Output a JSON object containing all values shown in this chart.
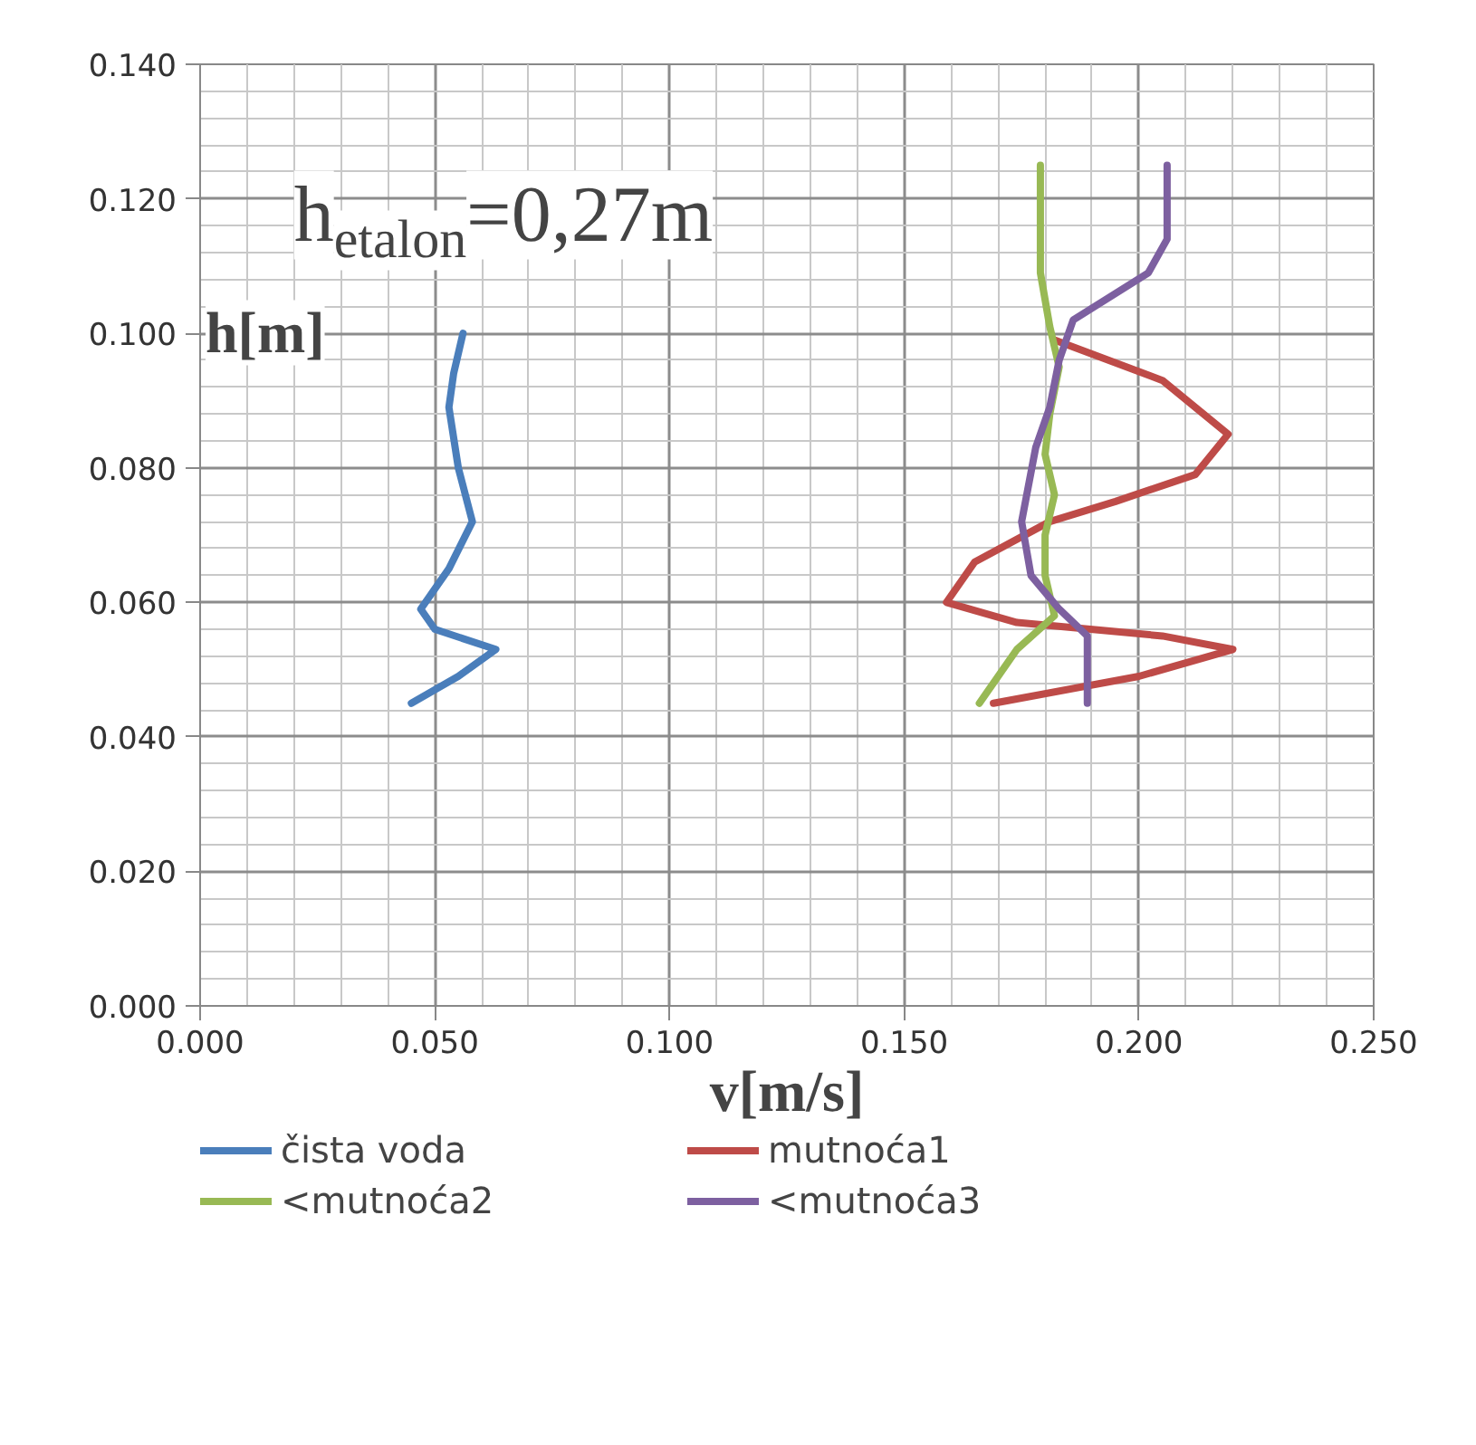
{
  "chart_data": {
    "type": "line",
    "xlabel": "v[m/s]",
    "ylabel": "h[m]",
    "annotations": [
      "h$_{etalon}$=0,27m"
    ],
    "xlim": [
      0,
      0.25
    ],
    "ylim": [
      0,
      0.14
    ],
    "xticks": [
      {
        "value": 0,
        "label": "0.000"
      },
      {
        "value": 0.05,
        "label": "0.050"
      },
      {
        "value": 0.1,
        "label": "0.100"
      },
      {
        "value": 0.15,
        "label": "0.150"
      },
      {
        "value": 0.2,
        "label": "0.200"
      },
      {
        "value": 0.25,
        "label": "0.250"
      }
    ],
    "yticks": [
      {
        "value": 0,
        "label": "0.000"
      },
      {
        "value": 0.02,
        "label": "0.020"
      },
      {
        "value": 0.04,
        "label": "0.040"
      },
      {
        "value": 0.06,
        "label": "0.060"
      },
      {
        "value": 0.08,
        "label": "0.080"
      },
      {
        "value": 0.1,
        "label": "0.100"
      },
      {
        "value": 0.12,
        "label": "0.120"
      },
      {
        "value": 0.14,
        "label": "0.140"
      }
    ],
    "grid": true,
    "legend": "bottom",
    "marker": "none",
    "line_style": "solid",
    "series": [
      {
        "name": "čista voda",
        "color": "#4a7ebb",
        "x": [
          0.056,
          0.054,
          0.053,
          0.055,
          0.058,
          0.053,
          0.047,
          0.05,
          0.063,
          0.055,
          0.045
        ],
        "values": [
          0.1,
          0.094,
          0.089,
          0.08,
          0.072,
          0.065,
          0.059,
          0.056,
          0.053,
          0.049,
          0.045
        ]
      },
      {
        "name": "mutnoća1",
        "color": "#be4b48",
        "x": [
          0.182,
          0.205,
          0.219,
          0.212,
          0.195,
          0.181,
          0.165,
          0.159,
          0.174,
          0.205,
          0.22,
          0.2,
          0.169
        ],
        "values": [
          0.099,
          0.093,
          0.085,
          0.079,
          0.075,
          0.072,
          0.066,
          0.06,
          0.057,
          0.055,
          0.053,
          0.049,
          0.045
        ]
      },
      {
        "name": "<mutnoća2",
        "color": "#98b954",
        "x": [
          0.179,
          0.179,
          0.181,
          0.183,
          0.181,
          0.18,
          0.182,
          0.18,
          0.18,
          0.182,
          0.174,
          0.166
        ],
        "values": [
          0.125,
          0.109,
          0.101,
          0.095,
          0.088,
          0.082,
          0.076,
          0.07,
          0.064,
          0.058,
          0.053,
          0.045
        ]
      },
      {
        "name": "<mutnoća3",
        "color": "#7d60a0",
        "x": [
          0.206,
          0.206,
          0.202,
          0.186,
          0.183,
          0.181,
          0.178,
          0.175,
          0.177,
          0.183,
          0.189,
          0.189
        ],
        "values": [
          0.125,
          0.114,
          0.109,
          0.102,
          0.096,
          0.089,
          0.083,
          0.072,
          0.064,
          0.059,
          0.055,
          0.045
        ]
      }
    ]
  }
}
